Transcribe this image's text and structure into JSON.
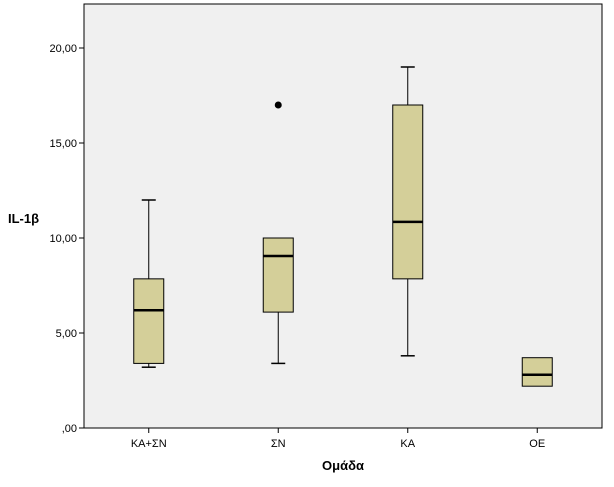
{
  "chart_data": {
    "type": "boxplot",
    "title": "",
    "xlabel": "Ομάδα",
    "ylabel": "IL-1β",
    "ylim": [
      0,
      22
    ],
    "yticks": [
      0,
      5,
      10,
      15,
      20
    ],
    "ytick_labels": [
      ",00",
      "5,00",
      "10,00",
      "15,00",
      "20,00"
    ],
    "grid": false,
    "categories": [
      "ΚΑ+ΣΝ",
      "ΣΝ",
      "ΚΑ",
      "ΟΕ"
    ],
    "boxes": [
      {
        "category": "ΚΑ+ΣΝ",
        "whisker_low": 3.2,
        "q1": 3.4,
        "median": 6.2,
        "q3": 7.85,
        "whisker_high": 12.0,
        "outliers": []
      },
      {
        "category": "ΣΝ",
        "whisker_low": 3.4,
        "q1": 6.1,
        "median": 9.05,
        "q3": 10.0,
        "whisker_high": 10.0,
        "outliers": [
          17.0
        ]
      },
      {
        "category": "ΚΑ",
        "whisker_low": 3.8,
        "q1": 7.85,
        "median": 10.85,
        "q3": 17.0,
        "whisker_high": 19.0,
        "outliers": []
      },
      {
        "category": "ΟΕ",
        "whisker_low": 2.2,
        "q1": 2.2,
        "median": 2.8,
        "q3": 3.7,
        "whisker_high": 3.7,
        "outliers": []
      }
    ],
    "colors": {
      "plot_bg": "#f0f0f0",
      "box_fill": "#d4cf99",
      "stroke": "#000000"
    }
  }
}
